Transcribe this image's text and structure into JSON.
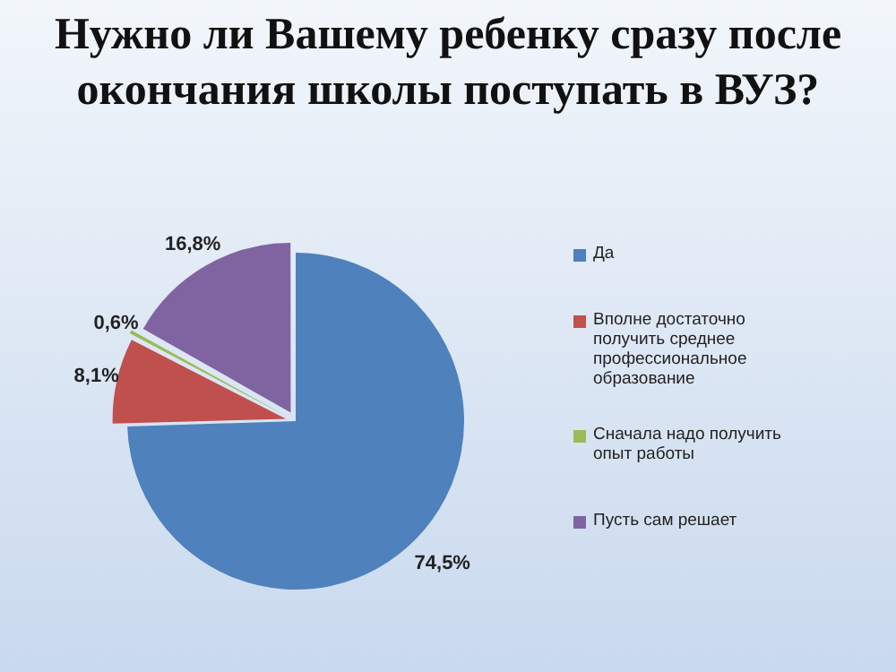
{
  "chart_data": {
    "type": "pie",
    "title": "Нужно ли Вашему ребенку сразу после окончания школы поступать в ВУЗ?",
    "categories": [
      "Да",
      "Вполне достаточно получить среднее профессиональное образование",
      "Сначала надо получить опыт работы",
      "Пусть сам решает"
    ],
    "values": [
      74.5,
      8.1,
      0.6,
      16.8
    ],
    "colors": [
      "#4f81bd",
      "#c0504d",
      "#9bbb59",
      "#8064a2"
    ],
    "value_labels": [
      "74,5%",
      "8,1%",
      "0,6%",
      "16,8%"
    ],
    "legend": "right"
  }
}
